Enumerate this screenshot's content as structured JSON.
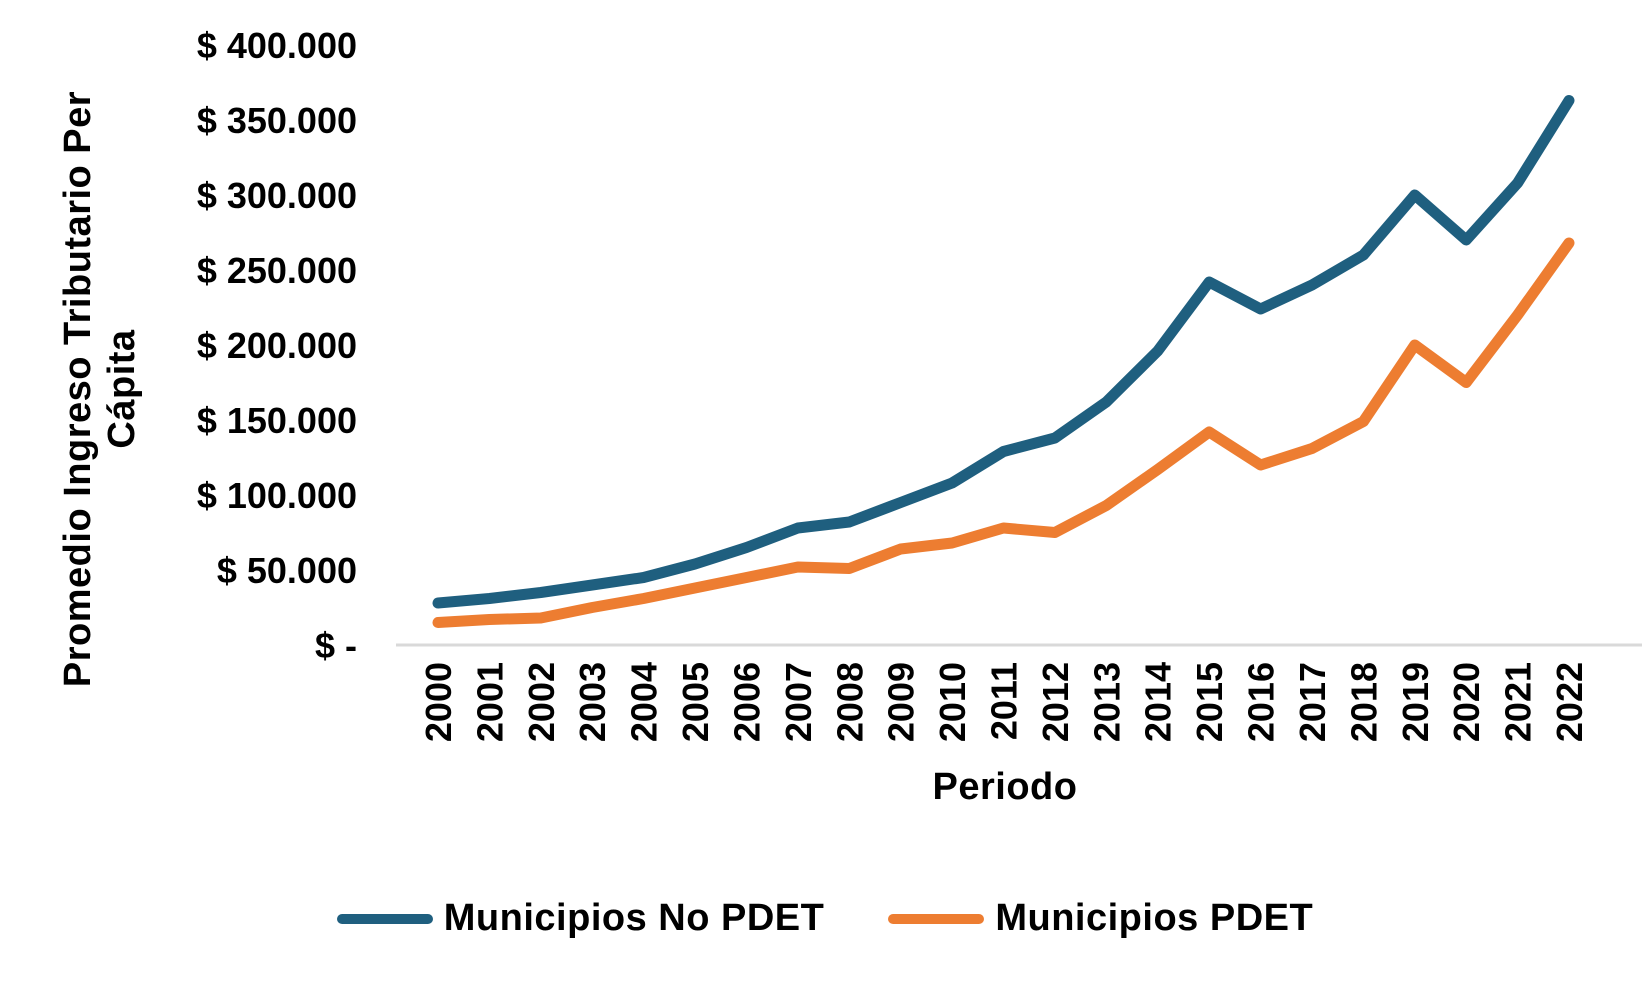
{
  "chart_data": {
    "type": "line",
    "title": "",
    "xlabel": "Periodo",
    "ylabel": "Promedio Ingreso Tributario Per Cápita",
    "ylabel_lines": [
      "Promedio Ingreso Tributario Per",
      "Cápita"
    ],
    "categories": [
      "2000",
      "2001",
      "2002",
      "2003",
      "2004",
      "2005",
      "2006",
      "2007",
      "2008",
      "2009",
      "2010",
      "2011",
      "2012",
      "2013",
      "2014",
      "2015",
      "2016",
      "2017",
      "2018",
      "2019",
      "2020",
      "2021",
      "2022"
    ],
    "series": [
      {
        "name": "Municipios No PDET",
        "color": "#1F5F7F",
        "values": [
          28000,
          31000,
          35000,
          40000,
          45000,
          54000,
          65000,
          78000,
          82000,
          95000,
          108000,
          129000,
          138000,
          162000,
          196000,
          242000,
          224000,
          240000,
          260000,
          300000,
          270000,
          308000,
          363000
        ]
      },
      {
        "name": "Municipios PDET",
        "color": "#ED7D31",
        "values": [
          15000,
          17000,
          18000,
          25000,
          31000,
          38000,
          45000,
          52000,
          51000,
          64000,
          68000,
          78000,
          75000,
          93000,
          117000,
          142000,
          120000,
          131000,
          149000,
          200000,
          175000,
          220000,
          268000
        ]
      }
    ],
    "y_axis": {
      "min": 0,
      "max": 400000,
      "step": 50000,
      "tick_values": [
        400000,
        350000,
        300000,
        250000,
        200000,
        150000,
        100000,
        50000,
        0
      ],
      "tick_labels": [
        "$ 400.000",
        "$ 350.000",
        "$ 300.000",
        "$ 250.000",
        "$ 200.000",
        "$ 150.000",
        "$ 100.000",
        "$ 50.000",
        "$ -"
      ]
    },
    "grid": false,
    "legend_position": "bottom",
    "axis_line_color": "#D9D9D9",
    "text_color": "#000000",
    "background_color": "#FFFFFF"
  }
}
